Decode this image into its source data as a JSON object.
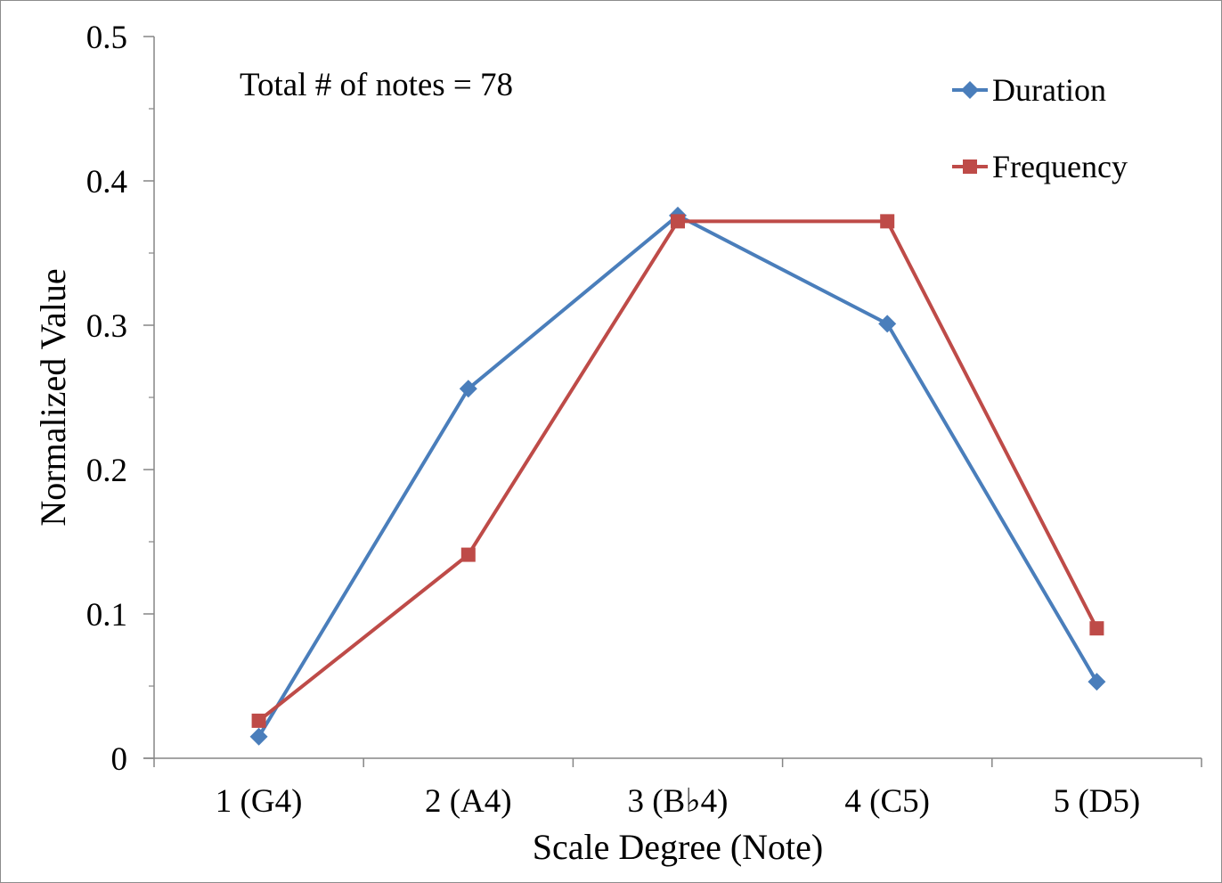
{
  "chart_data": {
    "type": "line",
    "title": "",
    "xlabel": "Scale Degree (Note)",
    "ylabel": "Normalized Value",
    "categories": [
      "1 (G4)",
      "2 (A4)",
      "3 (B♭4)",
      "4 (C5)",
      "5 (D5)"
    ],
    "ylim": [
      0,
      0.5
    ],
    "yticks": [
      0,
      0.1,
      0.2,
      0.3,
      0.4,
      0.5
    ],
    "ytick_labels": [
      "0",
      "0.1",
      "0.2",
      "0.3",
      "0.4",
      "0.5"
    ],
    "grid": false,
    "legend_position": "top-right",
    "annotation": "Total # of notes = 78",
    "series": [
      {
        "name": "Duration",
        "marker": "diamond",
        "color": "#4a7ebb",
        "values": [
          0.015,
          0.256,
          0.376,
          0.301,
          0.053
        ]
      },
      {
        "name": "Frequency",
        "marker": "square",
        "color": "#be4b48",
        "values": [
          0.026,
          0.141,
          0.372,
          0.372,
          0.09
        ]
      }
    ]
  }
}
